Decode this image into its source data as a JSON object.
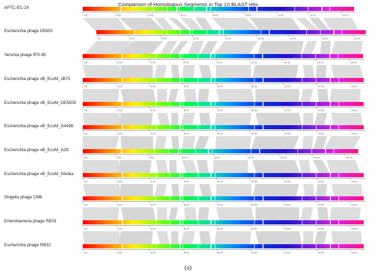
{
  "title": "Comparison of Homologous Segments in Top 10 BLAST Hits",
  "caption": "(a)",
  "tick_unit": "kb",
  "tick_labels": [
    "0 kb",
    "20 kb",
    "40 kb",
    "60 kb",
    "80 kb",
    "100 kb",
    "120 kb",
    "140 kb",
    "160 kb"
  ],
  "genomes": [
    {
      "name": "APTC-EC-2A"
    },
    {
      "name": "Escherichia phage D5505"
    },
    {
      "name": "Yersinia phage fPS-65"
    },
    {
      "name": "Escherichia phage vB_EcoM_JB75"
    },
    {
      "name": "Escherichia phage vB_EcoM_OE5505"
    },
    {
      "name": "Escherichia phage vB_EcoM_G4498"
    },
    {
      "name": "Escherichia phage vB_EcoM_G29"
    },
    {
      "name": "Escherichia phage vB_EcoM_Shinka"
    },
    {
      "name": "Shigella phage CM8"
    },
    {
      "name": "Enterobacteria phage RB33"
    },
    {
      "name": "Escherichia phage RB32"
    }
  ],
  "colors": {
    "gradient": [
      "#ff0000",
      "#ff8000",
      "#ffee00",
      "#80ff00",
      "#00ff40",
      "#00e0b0",
      "#0080ff",
      "#1030e0",
      "#2010d0",
      "#8020e0",
      "#e020e0",
      "#ff1080"
    ],
    "homology": "#cfcfcf",
    "axis": "#555555"
  }
}
